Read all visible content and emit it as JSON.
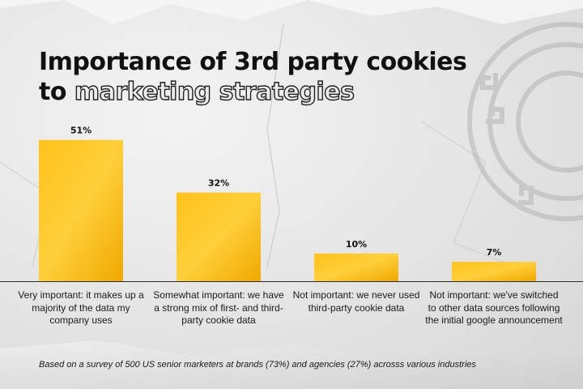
{
  "title": {
    "line1": "Importance of 3rd party cookies",
    "line2_plain": "to ",
    "line2_outline": "marketing strategies"
  },
  "chart_data": {
    "type": "bar",
    "categories": [
      "Very important: it makes up a majority of the data my company uses",
      "Somewhat important: we have a strong mix of first- and third- party cookie data",
      "Not important: we never used third-party cookie data",
      "Not important: we've switched to other data sources following the initial google announcement"
    ],
    "values": [
      51,
      32,
      10,
      7
    ],
    "value_labels": [
      "51%",
      "32%",
      "10%",
      "7%"
    ],
    "ylim": [
      0,
      55
    ],
    "bar_color": "#ffc21a",
    "grid": false,
    "legend": "none"
  },
  "footnote": "Based on a survey of 500 US  senior marketers at brands (73%) and agencies (27%) acrosss various industries",
  "colors": {
    "bar": "#ffc21a",
    "bar_shadow": "#f0a800",
    "text": "#111111",
    "background": "#e6e6e6"
  }
}
